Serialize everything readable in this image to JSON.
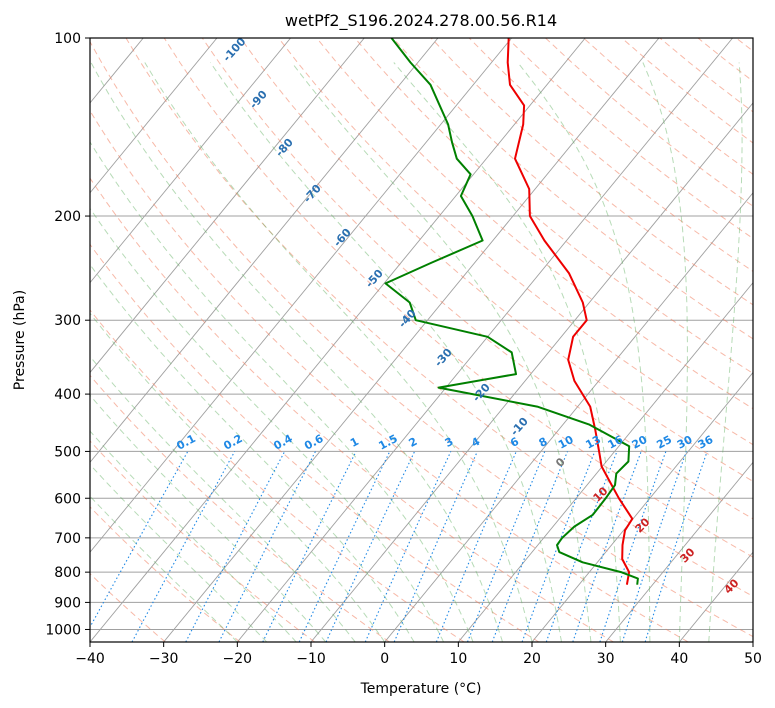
{
  "chart_data": {
    "type": "skew-t",
    "title": "wetPf2_S196.2024.278.00.56.R14",
    "xlabel": "Temperature (°C)",
    "ylabel": "Pressure (hPa)",
    "xlim": [
      -40,
      50
    ],
    "ylim": [
      1050,
      100
    ],
    "y_scale": "log",
    "x_ticks": [
      "−40",
      "−30",
      "−20",
      "−10",
      "0",
      "10",
      "20",
      "30",
      "40",
      "50"
    ],
    "y_ticks": [
      "100",
      "200",
      "300",
      "400",
      "500",
      "600",
      "700",
      "800",
      "900",
      "1000"
    ],
    "grid": true,
    "series": [
      {
        "name": "",
        "color": "#ee0000",
        "points": [
          [
            840,
            26.5
          ],
          [
            800,
            25.4
          ],
          [
            760,
            23.0
          ],
          [
            720,
            21.5
          ],
          [
            680,
            20.2
          ],
          [
            650,
            19.9
          ],
          [
            600,
            15.8
          ],
          [
            560,
            12.5
          ],
          [
            530,
            9.9
          ],
          [
            500,
            7.9
          ],
          [
            460,
            5.0
          ],
          [
            420,
            1.7
          ],
          [
            380,
            -3.3
          ],
          [
            350,
            -6.5
          ],
          [
            320,
            -8.4
          ],
          [
            300,
            -8.4
          ],
          [
            280,
            -10.9
          ],
          [
            250,
            -16.0
          ],
          [
            220,
            -23.0
          ],
          [
            200,
            -27.7
          ],
          [
            180,
            -30.8
          ],
          [
            160,
            -36.1
          ],
          [
            140,
            -38.8
          ],
          [
            130,
            -40.8
          ],
          [
            120,
            -45.0
          ],
          [
            110,
            -47.8
          ],
          [
            100,
            -50.4
          ]
        ]
      },
      {
        "name": "",
        "color": "#008000",
        "points": [
          [
            840,
            27.9
          ],
          [
            820,
            27.3
          ],
          [
            800,
            24.3
          ],
          [
            770,
            18.0
          ],
          [
            740,
            13.7
          ],
          [
            720,
            12.6
          ],
          [
            700,
            12.5
          ],
          [
            670,
            12.9
          ],
          [
            640,
            14.1
          ],
          [
            600,
            14.0
          ],
          [
            570,
            13.8
          ],
          [
            545,
            12.7
          ],
          [
            520,
            13.0
          ],
          [
            490,
            11.4
          ],
          [
            450,
            3.5
          ],
          [
            420,
            -5.5
          ],
          [
            390,
            -21.0
          ],
          [
            370,
            -12.0
          ],
          [
            340,
            -15.0
          ],
          [
            320,
            -20.0
          ],
          [
            300,
            -31.6
          ],
          [
            280,
            -34.4
          ],
          [
            260,
            -39.8
          ],
          [
            240,
            -35.9
          ],
          [
            220,
            -31.4
          ],
          [
            200,
            -35.5
          ],
          [
            185,
            -39.3
          ],
          [
            170,
            -40.4
          ],
          [
            160,
            -44.0
          ],
          [
            150,
            -46.5
          ],
          [
            140,
            -49.0
          ],
          [
            120,
            -55.8
          ],
          [
            110,
            -61.0
          ],
          [
            100,
            -66.3
          ]
        ]
      }
    ],
    "dry_adiabat_labels": [
      "-100",
      "-90",
      "-80",
      "-70",
      "-60",
      "-50",
      "-40",
      "-30",
      "-20",
      "-10"
    ],
    "moist_adiabat_labels": [
      "0",
      "10",
      "20",
      "30",
      "40"
    ],
    "mixing_ratio_labels": [
      "0.1",
      "0.2",
      "0.4",
      "0.6",
      "1",
      "1.5",
      "2",
      "3",
      "4",
      "6",
      "8",
      "10",
      "13",
      "16",
      "20",
      "25",
      "30",
      "36"
    ],
    "colors": {
      "temperature": "#ee0000",
      "dewpoint": "#008000",
      "dry_adiabat": "#f08060",
      "moist_adiabat": "#60b060",
      "mixing_ratio": "#1e88e5",
      "isotherm": "#a0a0a0",
      "isobar": "#a0a0a0",
      "dry_label": "#2a6fb0",
      "moist_label": "#cc2222",
      "zero_label": "#777777"
    }
  }
}
